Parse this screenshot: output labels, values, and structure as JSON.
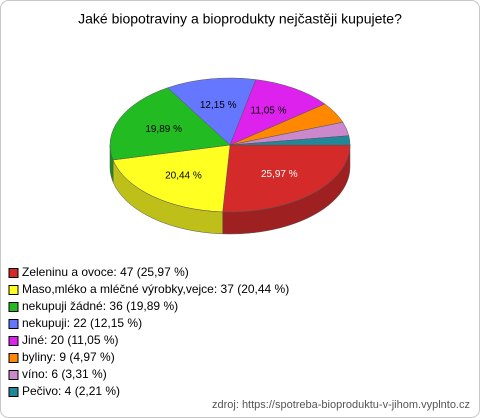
{
  "chart_data": {
    "type": "pie3d",
    "title": "Jaké biopotraviny a bioprodukty nejčastěji kupujete?",
    "categories": [
      "Zeleninu a ovoce",
      "Maso,mléko a mléčné výrobky,vejce",
      "nekupuji žádné",
      "nekupuji",
      "Jiné",
      "byliny",
      "víno",
      "Pečivo"
    ],
    "values": [
      25.97,
      20.44,
      19.89,
      12.15,
      11.05,
      4.97,
      3.31,
      2.21
    ],
    "value_labels": [
      "25,97 %",
      "20,44 %",
      "19,89 %",
      "12,15 %",
      "11,05 %",
      null,
      null,
      null
    ],
    "legend_labels": [
      "Zeleninu a ovoce: 47 (25,97 %)",
      "Maso,mléko a mléčné výrobky,vejce: 37 (20,44 %)",
      "nekupuji žádné: 36 (19,89 %)",
      "nekupuji: 22 (12,15 %)",
      "Jiné: 20 (11,05 %)",
      "byliny: 9 (4,97 %)",
      "víno: 6 (3,31 %)",
      "Pečivo: 4 (2,21 %)"
    ],
    "colors": [
      "#d42a2a",
      "#ffff22",
      "#22bb22",
      "#6677ff",
      "#dd22ee",
      "#ff8800",
      "#cc88cc",
      "#228899"
    ],
    "source": "zdroj: https://spotreba-bioproduktu-v-jihom.vyplnto.cz"
  }
}
